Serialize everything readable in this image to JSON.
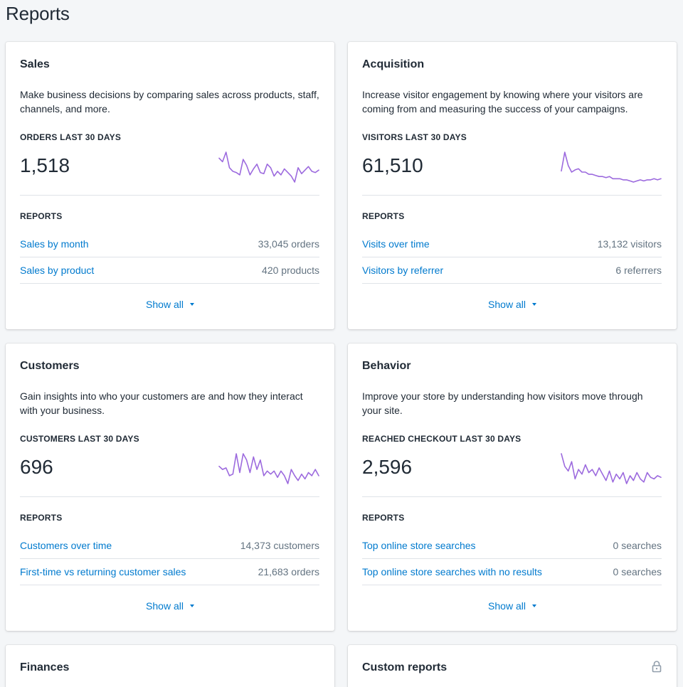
{
  "page": {
    "title": "Reports"
  },
  "cards": [
    {
      "title": "Sales",
      "description": "Make business decisions by comparing sales across products, staff, channels, and more.",
      "metric_label": "ORDERS LAST 30 DAYS",
      "metric_value": "1,518",
      "sparkline": [
        52,
        49,
        57,
        44,
        41,
        40,
        38,
        51,
        46,
        38,
        43,
        47,
        40,
        39,
        47,
        44,
        37,
        41,
        38,
        43,
        40,
        37,
        32,
        44,
        39,
        42,
        45,
        41,
        40,
        42
      ],
      "reports_label": "REPORTS",
      "reports": [
        {
          "label": "Sales by month",
          "count": "33,045 orders"
        },
        {
          "label": "Sales by product",
          "count": "420 products"
        }
      ],
      "show_all": "Show all"
    },
    {
      "title": "Acquisition",
      "description": "Increase visitor engagement by knowing where your visitors are coming from and measuring the success of your campaigns.",
      "metric_label": "VISITORS LAST 30 DAYS",
      "metric_value": "61,510",
      "sparkline": [
        45,
        62,
        50,
        44,
        46,
        47,
        44,
        44,
        42,
        42,
        41,
        40,
        40,
        39,
        40,
        38,
        38,
        38,
        37,
        37,
        36,
        35,
        36,
        37,
        36,
        37,
        37,
        38,
        37,
        38
      ],
      "reports_label": "REPORTS",
      "reports": [
        {
          "label": "Visits over time",
          "count": "13,132 visitors"
        },
        {
          "label": "Visitors by referrer",
          "count": "6 referrers"
        }
      ],
      "show_all": "Show all"
    },
    {
      "title": "Customers",
      "description": "Gain insights into who your customers are and how they interact with your business.",
      "metric_label": "CUSTOMERS LAST 30 DAYS",
      "metric_value": "696",
      "sparkline": [
        44,
        42,
        43,
        38,
        39,
        52,
        40,
        52,
        48,
        40,
        50,
        42,
        48,
        38,
        41,
        39,
        41,
        37,
        41,
        38,
        33,
        42,
        38,
        35,
        39,
        36,
        40,
        38,
        42,
        38
      ],
      "reports_label": "REPORTS",
      "reports": [
        {
          "label": "Customers over time",
          "count": "14,373 customers"
        },
        {
          "label": "First-time vs returning customer sales",
          "count": "21,683 orders"
        }
      ],
      "show_all": "Show all"
    },
    {
      "title": "Behavior",
      "description": "Improve your store by understanding how visitors move through your site.",
      "metric_label": "REACHED CHECKOUT LAST 30 DAYS",
      "metric_value": "2,596",
      "sparkline": [
        54,
        46,
        43,
        49,
        38,
        44,
        41,
        47,
        42,
        44,
        40,
        45,
        41,
        37,
        43,
        36,
        41,
        38,
        42,
        35,
        40,
        37,
        42,
        38,
        36,
        42,
        39,
        38,
        40,
        39
      ],
      "reports_label": "REPORTS",
      "reports": [
        {
          "label": "Top online store searches",
          "count": "0 searches"
        },
        {
          "label": "Top online store searches with no results",
          "count": "0 searches"
        }
      ],
      "show_all": "Show all"
    },
    {
      "title": "Finances"
    },
    {
      "title": "Custom reports"
    }
  ],
  "colors": {
    "background": "#f4f6f8",
    "link": "#007ace",
    "sparkline": "#9c6ade",
    "muted": "#637381"
  },
  "icons": {
    "custom_reports": "lock-icon"
  }
}
